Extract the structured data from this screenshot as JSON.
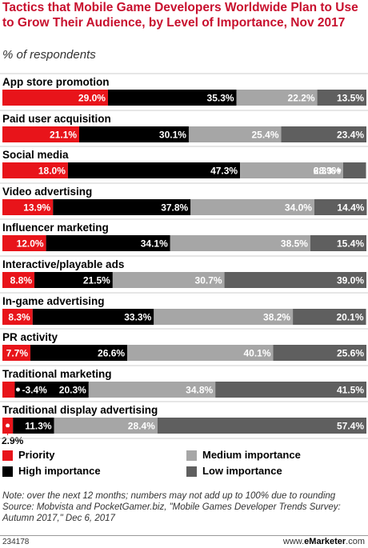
{
  "title": "Tactics that Mobile Game Developers Worldwide Plan to Use to Grow Their Audience, by Level of Importance, Nov 2017",
  "subtitle": "% of respondents",
  "colors": {
    "priority": "#e8141a",
    "high": "#000000",
    "medium": "#a6a6a6",
    "low": "#5f5f5f"
  },
  "legend": [
    {
      "key": "priority",
      "label": "Priority"
    },
    {
      "key": "high",
      "label": "High importance"
    },
    {
      "key": "medium",
      "label": "Medium importance"
    },
    {
      "key": "low",
      "label": "Low importance"
    }
  ],
  "chart_data": {
    "type": "bar",
    "orientation": "horizontal",
    "stacked": true,
    "categories": [
      "App store promotion",
      "Paid user acquisition",
      "Social media",
      "Video advertising",
      "Influencer marketing",
      "Interactive/playable ads",
      "In-game advertising",
      "PR activity",
      "Traditional marketing",
      "Traditional display advertising"
    ],
    "series": [
      {
        "name": "Priority",
        "values": [
          29.0,
          21.1,
          18.0,
          13.9,
          12.0,
          8.8,
          8.3,
          7.7,
          3.4,
          2.9
        ]
      },
      {
        "name": "High importance",
        "values": [
          35.3,
          30.1,
          47.3,
          37.8,
          34.1,
          21.5,
          33.3,
          26.6,
          20.3,
          11.3
        ]
      },
      {
        "name": "Medium importance",
        "values": [
          22.2,
          25.4,
          28.3,
          34.0,
          38.5,
          30.7,
          38.2,
          40.1,
          34.8,
          28.4
        ]
      },
      {
        "name": "Low importance",
        "values": [
          13.5,
          23.4,
          6.3,
          14.4,
          15.4,
          39.0,
          20.1,
          25.6,
          41.5,
          57.4
        ]
      }
    ],
    "value_labels": [
      [
        "29.0%",
        "35.3%",
        "22.2%",
        "13.5%"
      ],
      [
        "21.1%",
        "30.1%",
        "25.4%",
        "23.4%"
      ],
      [
        "18.0%",
        "47.3%",
        "28.3%",
        "6.3%"
      ],
      [
        "13.9%",
        "37.8%",
        "34.0%",
        "14.4%"
      ],
      [
        "12.0%",
        "34.1%",
        "38.5%",
        "15.4%"
      ],
      [
        "8.8%",
        "21.5%",
        "30.7%",
        "39.0%"
      ],
      [
        "8.3%",
        "33.3%",
        "38.2%",
        "20.1%"
      ],
      [
        "7.7%",
        "26.6%",
        "40.1%",
        "25.6%"
      ],
      [
        "3.4%",
        "20.3%",
        "34.8%",
        "41.5%"
      ],
      [
        "2.9%",
        "11.3%",
        "28.4%",
        "57.4%"
      ]
    ],
    "xlim": [
      0,
      100
    ]
  },
  "note": "Note: over the next 12 months; numbers may not add up to 100% due to rounding",
  "source": "Source: Mobvista and PocketGamer.biz, \"Mobile Games Developer Trends Survey: Autumn 2017,\" Dec 6, 2017",
  "chart_id": "234178",
  "brand": {
    "prefix": "www.",
    "name": "eMarketer",
    "suffix": ".com"
  }
}
